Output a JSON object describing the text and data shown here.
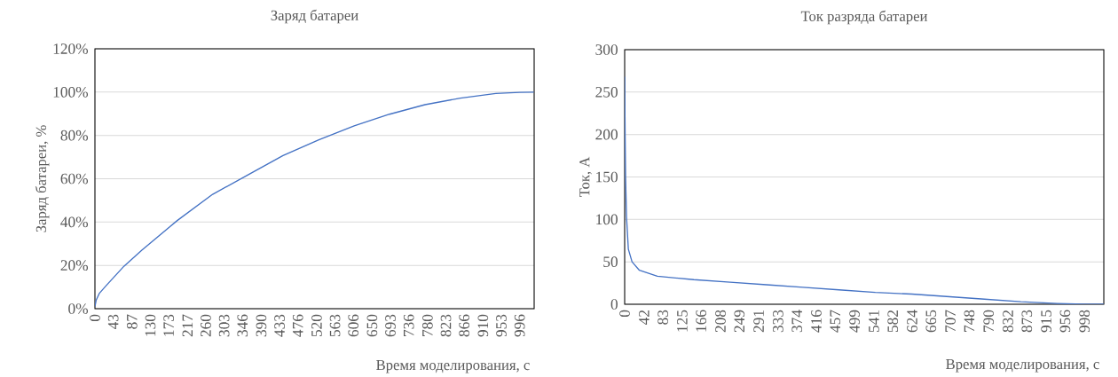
{
  "chart_data": [
    {
      "type": "line",
      "title": "Заряд батареи",
      "xlabel": "Время моделирования, с",
      "ylabel": "Заряд батареи, %",
      "color": "#4472c4",
      "grid": "y",
      "x": [
        0,
        3,
        10,
        26.5,
        68,
        110,
        193,
        276,
        358,
        441,
        525,
        608,
        691,
        774,
        857,
        940,
        996,
        1029
      ],
      "values": [
        1,
        4,
        7,
        10.7,
        19.6,
        27,
        40.7,
        52.8,
        61.7,
        70.7,
        78,
        84.4,
        89.8,
        94.2,
        97.2,
        99.4,
        99.9,
        100
      ],
      "xlim": [
        0,
        1030
      ],
      "xticks": [
        0,
        43,
        87,
        130,
        173,
        217,
        260,
        303,
        346,
        390,
        433,
        476,
        520,
        563,
        606,
        650,
        693,
        736,
        780,
        823,
        866,
        910,
        953,
        996
      ],
      "ylim": [
        0,
        120
      ],
      "yticks": [
        {
          "value": 0,
          "label": "0%"
        },
        {
          "value": 20,
          "label": "20%"
        },
        {
          "value": 40,
          "label": "40%"
        },
        {
          "value": 60,
          "label": "60%"
        },
        {
          "value": 80,
          "label": "80%"
        },
        {
          "value": 100,
          "label": "100%"
        },
        {
          "value": 120,
          "label": "120%"
        }
      ]
    },
    {
      "type": "line",
      "title": "Ток разряда батареи",
      "xlabel": "Время моделирования, с",
      "ylabel": "Ток, А",
      "color": "#4472c4",
      "grid": "y",
      "x": [
        0,
        1,
        2,
        4,
        8,
        16,
        32,
        71,
        150,
        229,
        308,
        387,
        465,
        544,
        623,
        702,
        781,
        860,
        939,
        998,
        1040
      ],
      "values": [
        268,
        200,
        150,
        103,
        65,
        50,
        40,
        33,
        29,
        26,
        23,
        20,
        17,
        14,
        12,
        9,
        6,
        3,
        1,
        0,
        0
      ],
      "xlim": [
        0,
        1040
      ],
      "xticks": [
        0,
        42,
        83,
        125,
        166,
        208,
        249,
        291,
        333,
        374,
        416,
        457,
        499,
        541,
        582,
        624,
        665,
        707,
        748,
        790,
        832,
        873,
        915,
        956,
        998
      ],
      "ylim": [
        0,
        300
      ],
      "yticks": [
        0,
        50,
        100,
        150,
        200,
        250,
        300
      ]
    }
  ]
}
